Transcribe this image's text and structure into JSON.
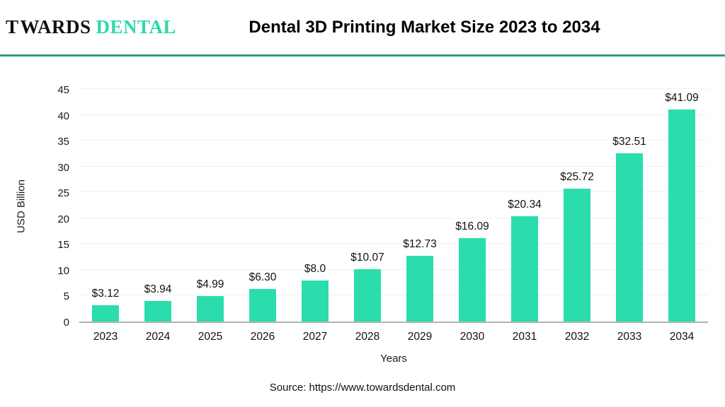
{
  "header": {
    "logo": {
      "prefix": "T",
      "rest": "WARDS",
      "suffix": "DENTAL"
    },
    "title": "Dental 3D Printing Market Size 2023 to 2034"
  },
  "colors": {
    "bar": "#2bddac",
    "divider": "#2f9e83",
    "logo_accent": "#2bd9aa",
    "logo_text": "#111111",
    "axis_line": "#b3b3b3",
    "gridline": "#f1f1f1"
  },
  "chart_data": {
    "type": "bar",
    "title": "Dental 3D Printing Market Size 2023 to 2034",
    "categories": [
      "2023",
      "2024",
      "2025",
      "2026",
      "2027",
      "2028",
      "2029",
      "2030",
      "2031",
      "2032",
      "2033",
      "2034"
    ],
    "values": [
      3.12,
      3.94,
      4.99,
      6.3,
      8.0,
      10.07,
      12.73,
      16.09,
      20.34,
      25.72,
      32.51,
      41.09
    ],
    "value_labels": [
      "$3.12",
      "$3.94",
      "$4.99",
      "$6.30",
      "$8.0",
      "$10.07",
      "$12.73",
      "$16.09",
      "$20.34",
      "$25.72",
      "$32.51",
      "$41.09"
    ],
    "xlabel": "Years",
    "ylabel": "USD Billion",
    "ylim": [
      0,
      45
    ],
    "yticks": [
      0,
      5,
      10,
      15,
      20,
      25,
      30,
      35,
      40,
      45
    ],
    "grid": true,
    "legend": false
  },
  "footer": {
    "source": "Source: https://www.towardsdental.com"
  }
}
